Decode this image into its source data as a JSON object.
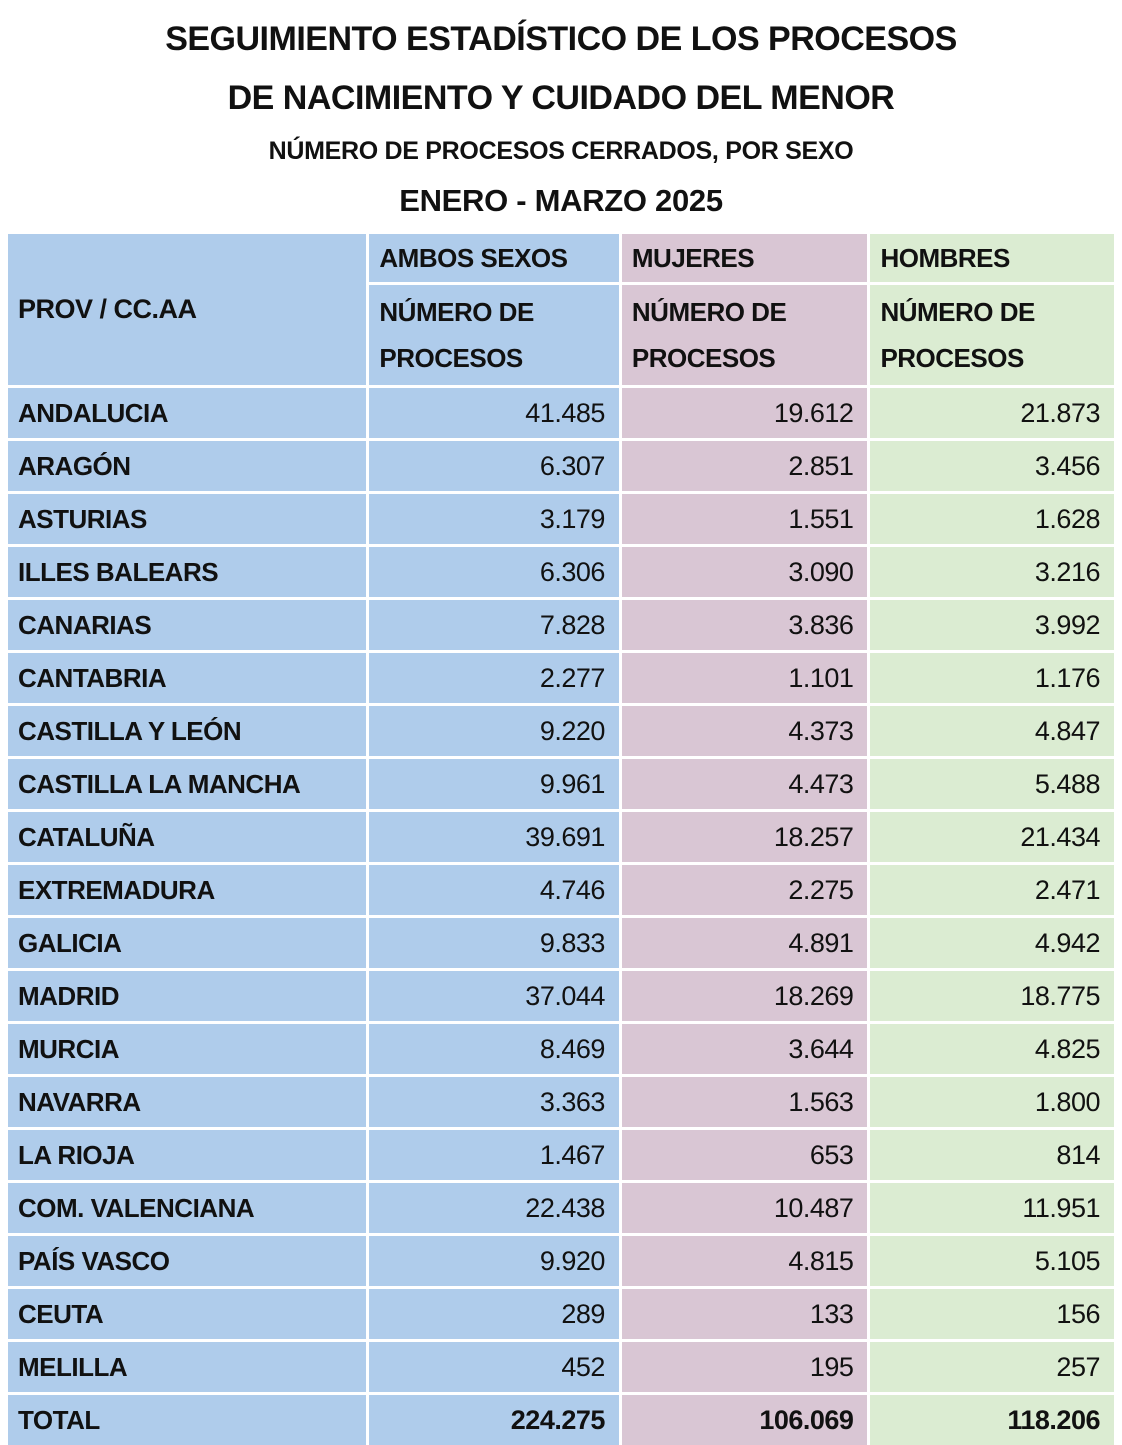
{
  "title": {
    "line1": "SEGUIMIENTO ESTADÍSTICO DE LOS PROCESOS",
    "line2": "DE NACIMIENTO Y CUIDADO DEL MENOR",
    "subtitle": "NÚMERO DE PROCESOS CERRADOS, POR SEXO",
    "period": "ENERO - MARZO 2025"
  },
  "colors": {
    "ambos_sexos_column": "#AFCCEB",
    "mujeres_column": "#D9C6D4",
    "hombres_column": "#DBECD2",
    "text": "#111111",
    "divider": "#FFFFFF"
  },
  "table": {
    "row_header": "PROV / CC.AA",
    "col_groups": [
      {
        "label": "AMBOS SEXOS",
        "sub_line1": "NÚMERO DE",
        "sub_line2": "PROCESOS"
      },
      {
        "label": "MUJERES",
        "sub_line1": "NÚMERO DE",
        "sub_line2": "PROCESOS"
      },
      {
        "label": "HOMBRES",
        "sub_line1": "NÚMERO DE",
        "sub_line2": "PROCESOS"
      }
    ],
    "rows": [
      {
        "label": "ANDALUCIA",
        "ambos": "41.485",
        "mujeres": "19.612",
        "hombres": "21.873"
      },
      {
        "label": "ARAGÓN",
        "ambos": "6.307",
        "mujeres": "2.851",
        "hombres": "3.456"
      },
      {
        "label": "ASTURIAS",
        "ambos": "3.179",
        "mujeres": "1.551",
        "hombres": "1.628"
      },
      {
        "label": "ILLES BALEARS",
        "ambos": "6.306",
        "mujeres": "3.090",
        "hombres": "3.216"
      },
      {
        "label": "CANARIAS",
        "ambos": "7.828",
        "mujeres": "3.836",
        "hombres": "3.992"
      },
      {
        "label": "CANTABRIA",
        "ambos": "2.277",
        "mujeres": "1.101",
        "hombres": "1.176"
      },
      {
        "label": "CASTILLA Y LEÓN",
        "ambos": "9.220",
        "mujeres": "4.373",
        "hombres": "4.847"
      },
      {
        "label": "CASTILLA LA MANCHA",
        "ambos": "9.961",
        "mujeres": "4.473",
        "hombres": "5.488"
      },
      {
        "label": "CATALUÑA",
        "ambos": "39.691",
        "mujeres": "18.257",
        "hombres": "21.434"
      },
      {
        "label": "EXTREMADURA",
        "ambos": "4.746",
        "mujeres": "2.275",
        "hombres": "2.471"
      },
      {
        "label": "GALICIA",
        "ambos": "9.833",
        "mujeres": "4.891",
        "hombres": "4.942"
      },
      {
        "label": "MADRID",
        "ambos": "37.044",
        "mujeres": "18.269",
        "hombres": "18.775"
      },
      {
        "label": "MURCIA",
        "ambos": "8.469",
        "mujeres": "3.644",
        "hombres": "4.825"
      },
      {
        "label": "NAVARRA",
        "ambos": "3.363",
        "mujeres": "1.563",
        "hombres": "1.800"
      },
      {
        "label": "LA RIOJA",
        "ambos": "1.467",
        "mujeres": "653",
        "hombres": "814"
      },
      {
        "label": "COM. VALENCIANA",
        "ambos": "22.438",
        "mujeres": "10.487",
        "hombres": "11.951"
      },
      {
        "label": "PAÍS VASCO",
        "ambos": "9.920",
        "mujeres": "4.815",
        "hombres": "5.105"
      },
      {
        "label": "CEUTA",
        "ambos": "289",
        "mujeres": "133",
        "hombres": "156"
      },
      {
        "label": "MELILLA",
        "ambos": "452",
        "mujeres": "195",
        "hombres": "257"
      }
    ],
    "total": {
      "label": "TOTAL",
      "ambos": "224.275",
      "mujeres": "106.069",
      "hombres": "118.206"
    }
  },
  "chart_data": {
    "type": "table",
    "title": "SEGUIMIENTO ESTADÍSTICO DE LOS PROCESOS DE NACIMIENTO Y CUIDADO DEL MENOR",
    "subtitle": "NÚMERO DE PROCESOS CERRADOS, POR SEXO",
    "period": "ENERO - MARZO 2025",
    "columns": [
      "PROV / CC.AA",
      "AMBOS SEXOS - NÚMERO DE PROCESOS",
      "MUJERES - NÚMERO DE PROCESOS",
      "HOMBRES - NÚMERO DE PROCESOS"
    ],
    "rows": [
      [
        "ANDALUCIA",
        41485,
        19612,
        21873
      ],
      [
        "ARAGÓN",
        6307,
        2851,
        3456
      ],
      [
        "ASTURIAS",
        3179,
        1551,
        1628
      ],
      [
        "ILLES BALEARS",
        6306,
        3090,
        3216
      ],
      [
        "CANARIAS",
        7828,
        3836,
        3992
      ],
      [
        "CANTABRIA",
        2277,
        1101,
        1176
      ],
      [
        "CASTILLA Y LEÓN",
        9220,
        4373,
        4847
      ],
      [
        "CASTILLA LA MANCHA",
        9961,
        4473,
        5488
      ],
      [
        "CATALUÑA",
        39691,
        18257,
        21434
      ],
      [
        "EXTREMADURA",
        4746,
        2275,
        2471
      ],
      [
        "GALICIA",
        9833,
        4891,
        4942
      ],
      [
        "MADRID",
        37044,
        18269,
        18775
      ],
      [
        "MURCIA",
        8469,
        3644,
        4825
      ],
      [
        "NAVARRA",
        3363,
        1563,
        1800
      ],
      [
        "LA RIOJA",
        1467,
        653,
        814
      ],
      [
        "COM. VALENCIANA",
        22438,
        10487,
        11951
      ],
      [
        "PAÍS VASCO",
        9920,
        4815,
        5105
      ],
      [
        "CEUTA",
        289,
        133,
        156
      ],
      [
        "MELILLA",
        452,
        195,
        257
      ]
    ],
    "total_row": [
      "TOTAL",
      224275,
      106069,
      118206
    ],
    "number_format": "es-ES (dot as thousands separator)"
  }
}
